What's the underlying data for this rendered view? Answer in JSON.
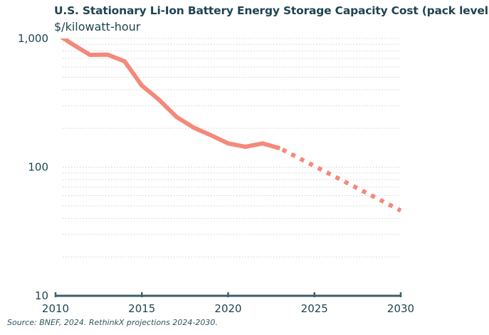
{
  "chart_data": {
    "type": "line",
    "title": "U.S. Stationary Li-Ion Battery Energy Storage Capacity Cost (pack level)",
    "ylabel": "$/kilowatt-hour",
    "xlabel": "",
    "xlim": [
      2010,
      2030
    ],
    "ylim": [
      10,
      1000
    ],
    "yscale": "log",
    "grid": "horizontal dotted minor lines",
    "x_ticks": [
      "2010",
      "2015",
      "2020",
      "2025",
      "2030"
    ],
    "y_ticks": [
      "10",
      "100",
      "1,000"
    ],
    "series": [
      {
        "style": "solid",
        "x": [
          2010,
          2011,
          2012,
          2013,
          2014,
          2015,
          2016,
          2017,
          2018,
          2019,
          2020,
          2021,
          2022,
          2023
        ],
        "values": [
          1100,
          900,
          746,
          750,
          665,
          431,
          334,
          246,
          203,
          177,
          153,
          144,
          153,
          140
        ]
      },
      {
        "style": "dotted",
        "x": [
          2023,
          2030
        ],
        "values": [
          140,
          46
        ]
      }
    ],
    "line_color": "#f4897b",
    "source": "Source: BNEF, 2024. RethinkX projections 2024-2030."
  }
}
